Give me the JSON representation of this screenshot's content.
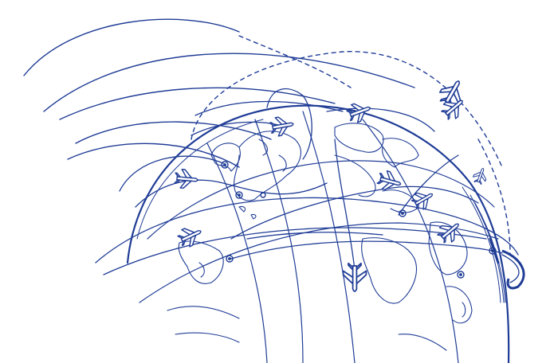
{
  "illustration": {
    "subject": "globe-flight-routes",
    "style": "line-sketch",
    "colors": {
      "ink": "#1f3c96",
      "ink_light": "#5b74bf",
      "paper": "#ffffff"
    },
    "icons": [
      "globe-icon",
      "airplane-icon",
      "location-pin-icon"
    ]
  }
}
